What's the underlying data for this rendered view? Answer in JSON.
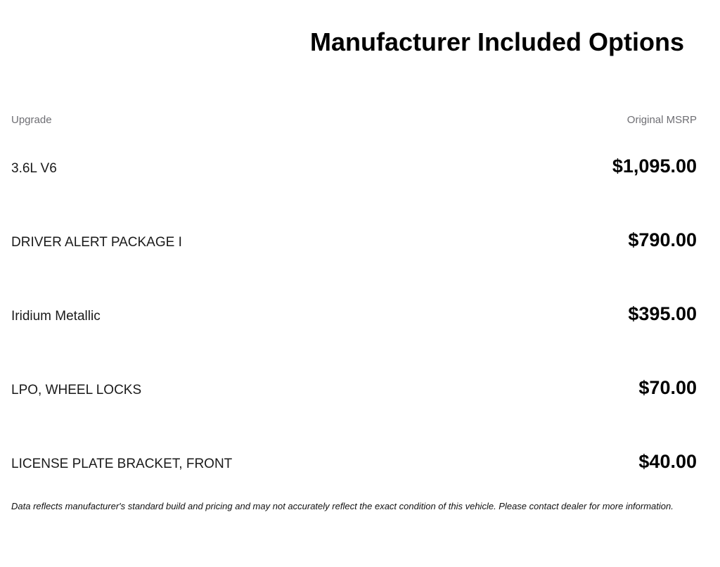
{
  "header": {
    "title": "Manufacturer Included Options"
  },
  "table": {
    "columns": [
      {
        "label": "Upgrade"
      },
      {
        "label": "Original MSRP"
      }
    ],
    "rows": [
      {
        "upgrade": "3.6L V6",
        "msrp": "$1,095.00"
      },
      {
        "upgrade": "DRIVER ALERT PACKAGE I",
        "msrp": "$790.00"
      },
      {
        "upgrade": "Iridium Metallic",
        "msrp": "$395.00"
      },
      {
        "upgrade": "LPO, WHEEL LOCKS",
        "msrp": "$70.00"
      },
      {
        "upgrade": "LICENSE PLATE BRACKET, FRONT",
        "msrp": "$40.00"
      }
    ]
  },
  "footer": {
    "disclaimer": "Data reflects manufacturer's standard build and pricing and may not accurately reflect the exact condition of this vehicle. Please contact dealer for more information."
  },
  "colors": {
    "background": "#ffffff",
    "heading_text": "#000000",
    "column_header_text": "#6e6e73",
    "row_label_text": "#1a1a1a",
    "price_text": "#000000"
  }
}
